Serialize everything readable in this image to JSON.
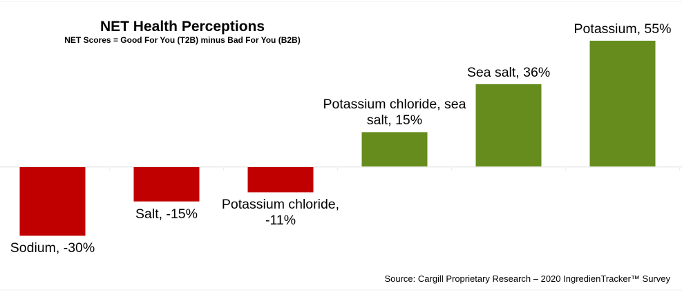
{
  "chart_data": {
    "type": "bar",
    "title": "NET Health Perceptions",
    "subtitle": "NET Scores = Good For You (T2B) minus Bad For You (B2B)",
    "categories": [
      "Sodium",
      "Salt",
      "Potassium chloride",
      "Potassium chloride, sea salt",
      "Sea salt",
      "Potassium"
    ],
    "values": [
      -30,
      -15,
      -11,
      15,
      36,
      55
    ],
    "data_labels": [
      "Sodium, -30%",
      "Salt, -15%",
      "Potassium chloride, -11%",
      "Potassium chloride, sea salt, 15%",
      "Sea salt, 36%",
      "Potassium, 55%"
    ],
    "unit": "%",
    "colors": {
      "negative": "#C00000",
      "positive": "#668C1E"
    },
    "grid": false,
    "legend": "none",
    "source": "Source: Cargill Proprietary Research – 2020 IngredienTracker™ Survey"
  }
}
